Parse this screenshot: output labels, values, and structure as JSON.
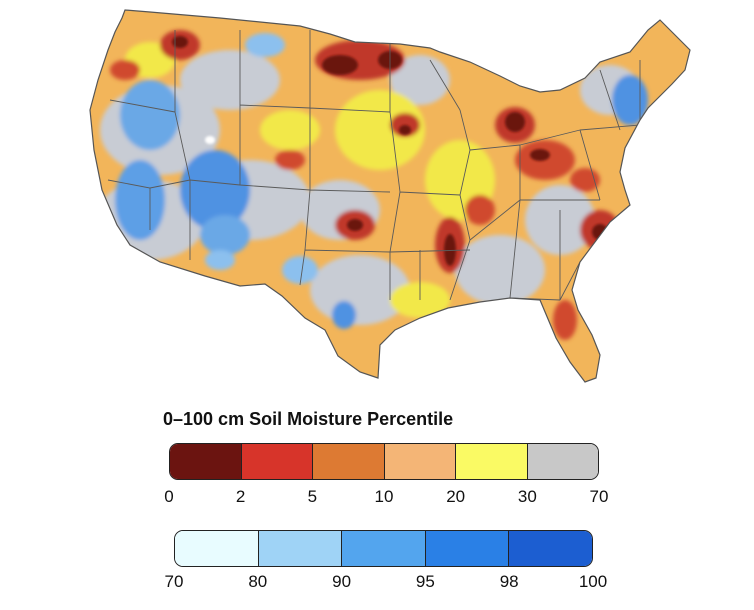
{
  "legend": {
    "title": "0–100 cm Soil Moisture Percentile",
    "dry_scale": {
      "colors": [
        "#6b1410",
        "#d7342a",
        "#dd7a33",
        "#f4b576",
        "#fafa64",
        "#c8c8c8"
      ],
      "ticks": [
        "0",
        "2",
        "5",
        "10",
        "20",
        "30",
        "70"
      ]
    },
    "wet_scale": {
      "colors": [
        "#e8fcff",
        "#9fd3f6",
        "#53a5ee",
        "#2a80e6",
        "#1c5ed1"
      ],
      "ticks": [
        "70",
        "80",
        "90",
        "95",
        "98",
        "100"
      ]
    }
  },
  "map": {
    "subject": "contiguous-united-states",
    "state_boundaries": true
  }
}
